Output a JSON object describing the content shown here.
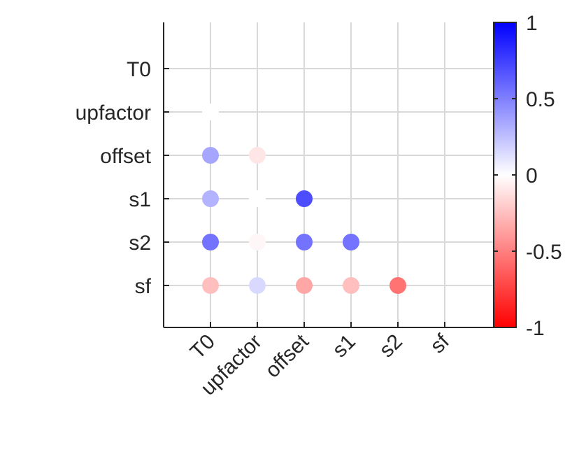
{
  "chart_data": {
    "type": "scatter",
    "title": "",
    "xlabel": "",
    "ylabel": "",
    "variables": [
      "T0",
      "upfactor",
      "offset",
      "s1",
      "s2",
      "sf"
    ],
    "grid": true,
    "colormap": {
      "min": -1,
      "max": 1,
      "neg_color": "#ff0000",
      "zero_color": "#ffffff",
      "pos_color": "#0000ff",
      "ticks": [
        {
          "value": 1,
          "label": "1"
        },
        {
          "value": 0.5,
          "label": "0.5"
        },
        {
          "value": 0,
          "label": "0"
        },
        {
          "value": -0.5,
          "label": "-0.5"
        },
        {
          "value": -1,
          "label": "-1"
        }
      ]
    },
    "points": [
      {
        "x": "T0",
        "y": "upfactor",
        "value": 0.0
      },
      {
        "x": "T0",
        "y": "offset",
        "value": 0.35
      },
      {
        "x": "T0",
        "y": "s1",
        "value": 0.3
      },
      {
        "x": "T0",
        "y": "s2",
        "value": 0.55
      },
      {
        "x": "T0",
        "y": "sf",
        "value": -0.25
      },
      {
        "x": "upfactor",
        "y": "offset",
        "value": -0.1
      },
      {
        "x": "upfactor",
        "y": "s1",
        "value": 0.0
      },
      {
        "x": "upfactor",
        "y": "s2",
        "value": -0.03
      },
      {
        "x": "upfactor",
        "y": "sf",
        "value": 0.15
      },
      {
        "x": "offset",
        "y": "s1",
        "value": 0.7
      },
      {
        "x": "offset",
        "y": "s2",
        "value": 0.55
      },
      {
        "x": "offset",
        "y": "sf",
        "value": -0.35
      },
      {
        "x": "s1",
        "y": "s2",
        "value": 0.55
      },
      {
        "x": "s1",
        "y": "sf",
        "value": -0.25
      },
      {
        "x": "s2",
        "y": "sf",
        "value": -0.55
      }
    ]
  }
}
